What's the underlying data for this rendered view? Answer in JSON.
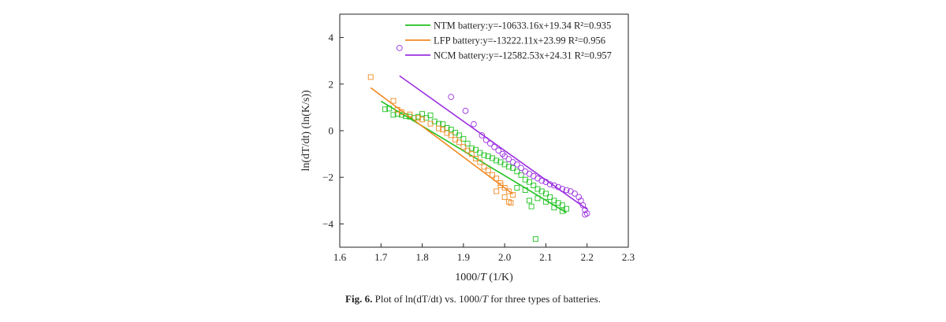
{
  "caption": {
    "label": "Fig. 6.",
    "text_pre": " Plot of ln(dT/dt) vs. 1000/",
    "text_var": "T",
    "text_post": " for three types of batteries."
  },
  "chart_data": {
    "type": "scatter",
    "xlabel_pre": "1000/",
    "xlabel_var": "T",
    "xlabel_post": " (1/K)",
    "ylabel": "ln(dT/dt) (ln(K/s))",
    "xlim": [
      1.6,
      2.3
    ],
    "ylim": [
      -5,
      5
    ],
    "xticks": [
      1.6,
      1.7,
      1.8,
      1.9,
      2.0,
      2.1,
      2.2,
      2.3
    ],
    "xtick_labels": [
      "1.6",
      "1.7",
      "1.8",
      "1.9",
      "2.0",
      "2.1",
      "2.2",
      "2.3"
    ],
    "yticks": [
      -4,
      -2,
      0,
      2,
      4
    ],
    "ytick_labels": [
      "−4",
      "−2",
      "0",
      "2",
      "4"
    ],
    "legend_position": "top-right",
    "series": [
      {
        "name": "NTM battery",
        "marker": "square",
        "color": "#22c222",
        "legend_eq": "y=-10633.16x+19.34 R²=0.935",
        "fit": {
          "slope": -10.63316,
          "intercept": 19.34,
          "x_range": [
            1.7,
            2.15
          ]
        },
        "points": [
          [
            1.71,
            0.92
          ],
          [
            1.72,
            0.95
          ],
          [
            1.73,
            0.68
          ],
          [
            1.74,
            0.72
          ],
          [
            1.75,
            0.68
          ],
          [
            1.76,
            0.62
          ],
          [
            1.77,
            0.6
          ],
          [
            1.78,
            0.55
          ],
          [
            1.79,
            0.6
          ],
          [
            1.8,
            0.72
          ],
          [
            1.81,
            0.55
          ],
          [
            1.82,
            0.66
          ],
          [
            1.83,
            0.4
          ],
          [
            1.84,
            0.3
          ],
          [
            1.85,
            0.28
          ],
          [
            1.86,
            0.12
          ],
          [
            1.87,
            0.05
          ],
          [
            1.88,
            -0.08
          ],
          [
            1.89,
            -0.2
          ],
          [
            1.9,
            -0.35
          ],
          [
            1.91,
            -0.55
          ],
          [
            1.92,
            -0.75
          ],
          [
            1.93,
            -0.82
          ],
          [
            1.94,
            -0.95
          ],
          [
            1.95,
            -1.05
          ],
          [
            1.96,
            -1.1
          ],
          [
            1.97,
            -1.18
          ],
          [
            1.98,
            -1.28
          ],
          [
            1.99,
            -1.35
          ],
          [
            2.0,
            -1.45
          ],
          [
            2.01,
            -1.55
          ],
          [
            2.02,
            -1.6
          ],
          [
            2.03,
            -1.75
          ],
          [
            2.04,
            -1.9
          ],
          [
            2.05,
            -2.1
          ],
          [
            2.06,
            -2.2
          ],
          [
            2.07,
            -2.35
          ],
          [
            2.08,
            -2.5
          ],
          [
            2.09,
            -2.6
          ],
          [
            2.1,
            -2.7
          ],
          [
            2.11,
            -2.85
          ],
          [
            2.12,
            -3.0
          ],
          [
            2.13,
            -3.1
          ],
          [
            2.14,
            -3.2
          ],
          [
            2.15,
            -3.35
          ],
          [
            2.06,
            -3.0
          ],
          [
            2.065,
            -3.25
          ],
          [
            2.075,
            -4.65
          ],
          [
            2.03,
            -2.45
          ],
          [
            2.05,
            -2.55
          ],
          [
            2.08,
            -2.9
          ],
          [
            2.1,
            -3.05
          ],
          [
            2.12,
            -3.3
          ],
          [
            2.14,
            -3.45
          ]
        ]
      },
      {
        "name": "LFP battery",
        "marker": "square",
        "color": "#f08a24",
        "legend_eq": "y=-13222.11x+23.99 R²=0.956",
        "fit": {
          "slope": -13.22211,
          "intercept": 23.99,
          "x_range": [
            1.675,
            2.02
          ]
        },
        "points": [
          [
            1.675,
            2.3
          ],
          [
            1.73,
            1.28
          ],
          [
            1.74,
            0.9
          ],
          [
            1.75,
            0.8
          ],
          [
            1.77,
            0.7
          ],
          [
            1.79,
            0.55
          ],
          [
            1.8,
            0.48
          ],
          [
            1.82,
            0.3
          ],
          [
            1.84,
            0.1
          ],
          [
            1.85,
            0.05
          ],
          [
            1.86,
            -0.1
          ],
          [
            1.87,
            -0.2
          ],
          [
            1.88,
            -0.38
          ],
          [
            1.89,
            -0.5
          ],
          [
            1.9,
            -0.7
          ],
          [
            1.91,
            -0.85
          ],
          [
            1.92,
            -1.0
          ],
          [
            1.93,
            -1.2
          ],
          [
            1.94,
            -1.35
          ],
          [
            1.95,
            -1.55
          ],
          [
            1.96,
            -1.7
          ],
          [
            1.97,
            -1.9
          ],
          [
            1.98,
            -2.05
          ],
          [
            1.99,
            -2.25
          ],
          [
            2.0,
            -2.45
          ],
          [
            2.01,
            -2.6
          ],
          [
            2.02,
            -2.75
          ],
          [
            2.0,
            -2.85
          ],
          [
            2.01,
            -3.05
          ],
          [
            2.015,
            -3.1
          ],
          [
            1.99,
            -2.35
          ],
          [
            1.98,
            -2.6
          ]
        ]
      },
      {
        "name": "NCM battery",
        "marker": "circle",
        "color": "#9b30e0",
        "legend_eq": "y=-12582.53x+24.31 R²=0.957",
        "fit": {
          "slope": -12.58253,
          "intercept": 24.31,
          "x_range": [
            1.745,
            2.2
          ]
        },
        "points": [
          [
            1.745,
            3.55
          ],
          [
            1.87,
            1.45
          ],
          [
            1.905,
            0.85
          ],
          [
            1.925,
            0.28
          ],
          [
            1.945,
            -0.2
          ],
          [
            1.955,
            -0.4
          ],
          [
            1.965,
            -0.55
          ],
          [
            1.975,
            -0.7
          ],
          [
            1.985,
            -0.85
          ],
          [
            1.995,
            -1.0
          ],
          [
            2.0,
            -1.1
          ],
          [
            2.01,
            -1.22
          ],
          [
            2.02,
            -1.35
          ],
          [
            2.03,
            -1.45
          ],
          [
            2.04,
            -1.6
          ],
          [
            2.05,
            -1.75
          ],
          [
            2.06,
            -1.85
          ],
          [
            2.07,
            -1.95
          ],
          [
            2.08,
            -2.05
          ],
          [
            2.09,
            -2.15
          ],
          [
            2.1,
            -2.2
          ],
          [
            2.11,
            -2.3
          ],
          [
            2.12,
            -2.35
          ],
          [
            2.13,
            -2.42
          ],
          [
            2.14,
            -2.5
          ],
          [
            2.15,
            -2.55
          ],
          [
            2.16,
            -2.6
          ],
          [
            2.17,
            -2.7
          ],
          [
            2.18,
            -2.85
          ],
          [
            2.185,
            -3.0
          ],
          [
            2.19,
            -3.2
          ],
          [
            2.195,
            -3.4
          ],
          [
            2.2,
            -3.55
          ],
          [
            2.195,
            -3.6
          ]
        ]
      }
    ]
  }
}
